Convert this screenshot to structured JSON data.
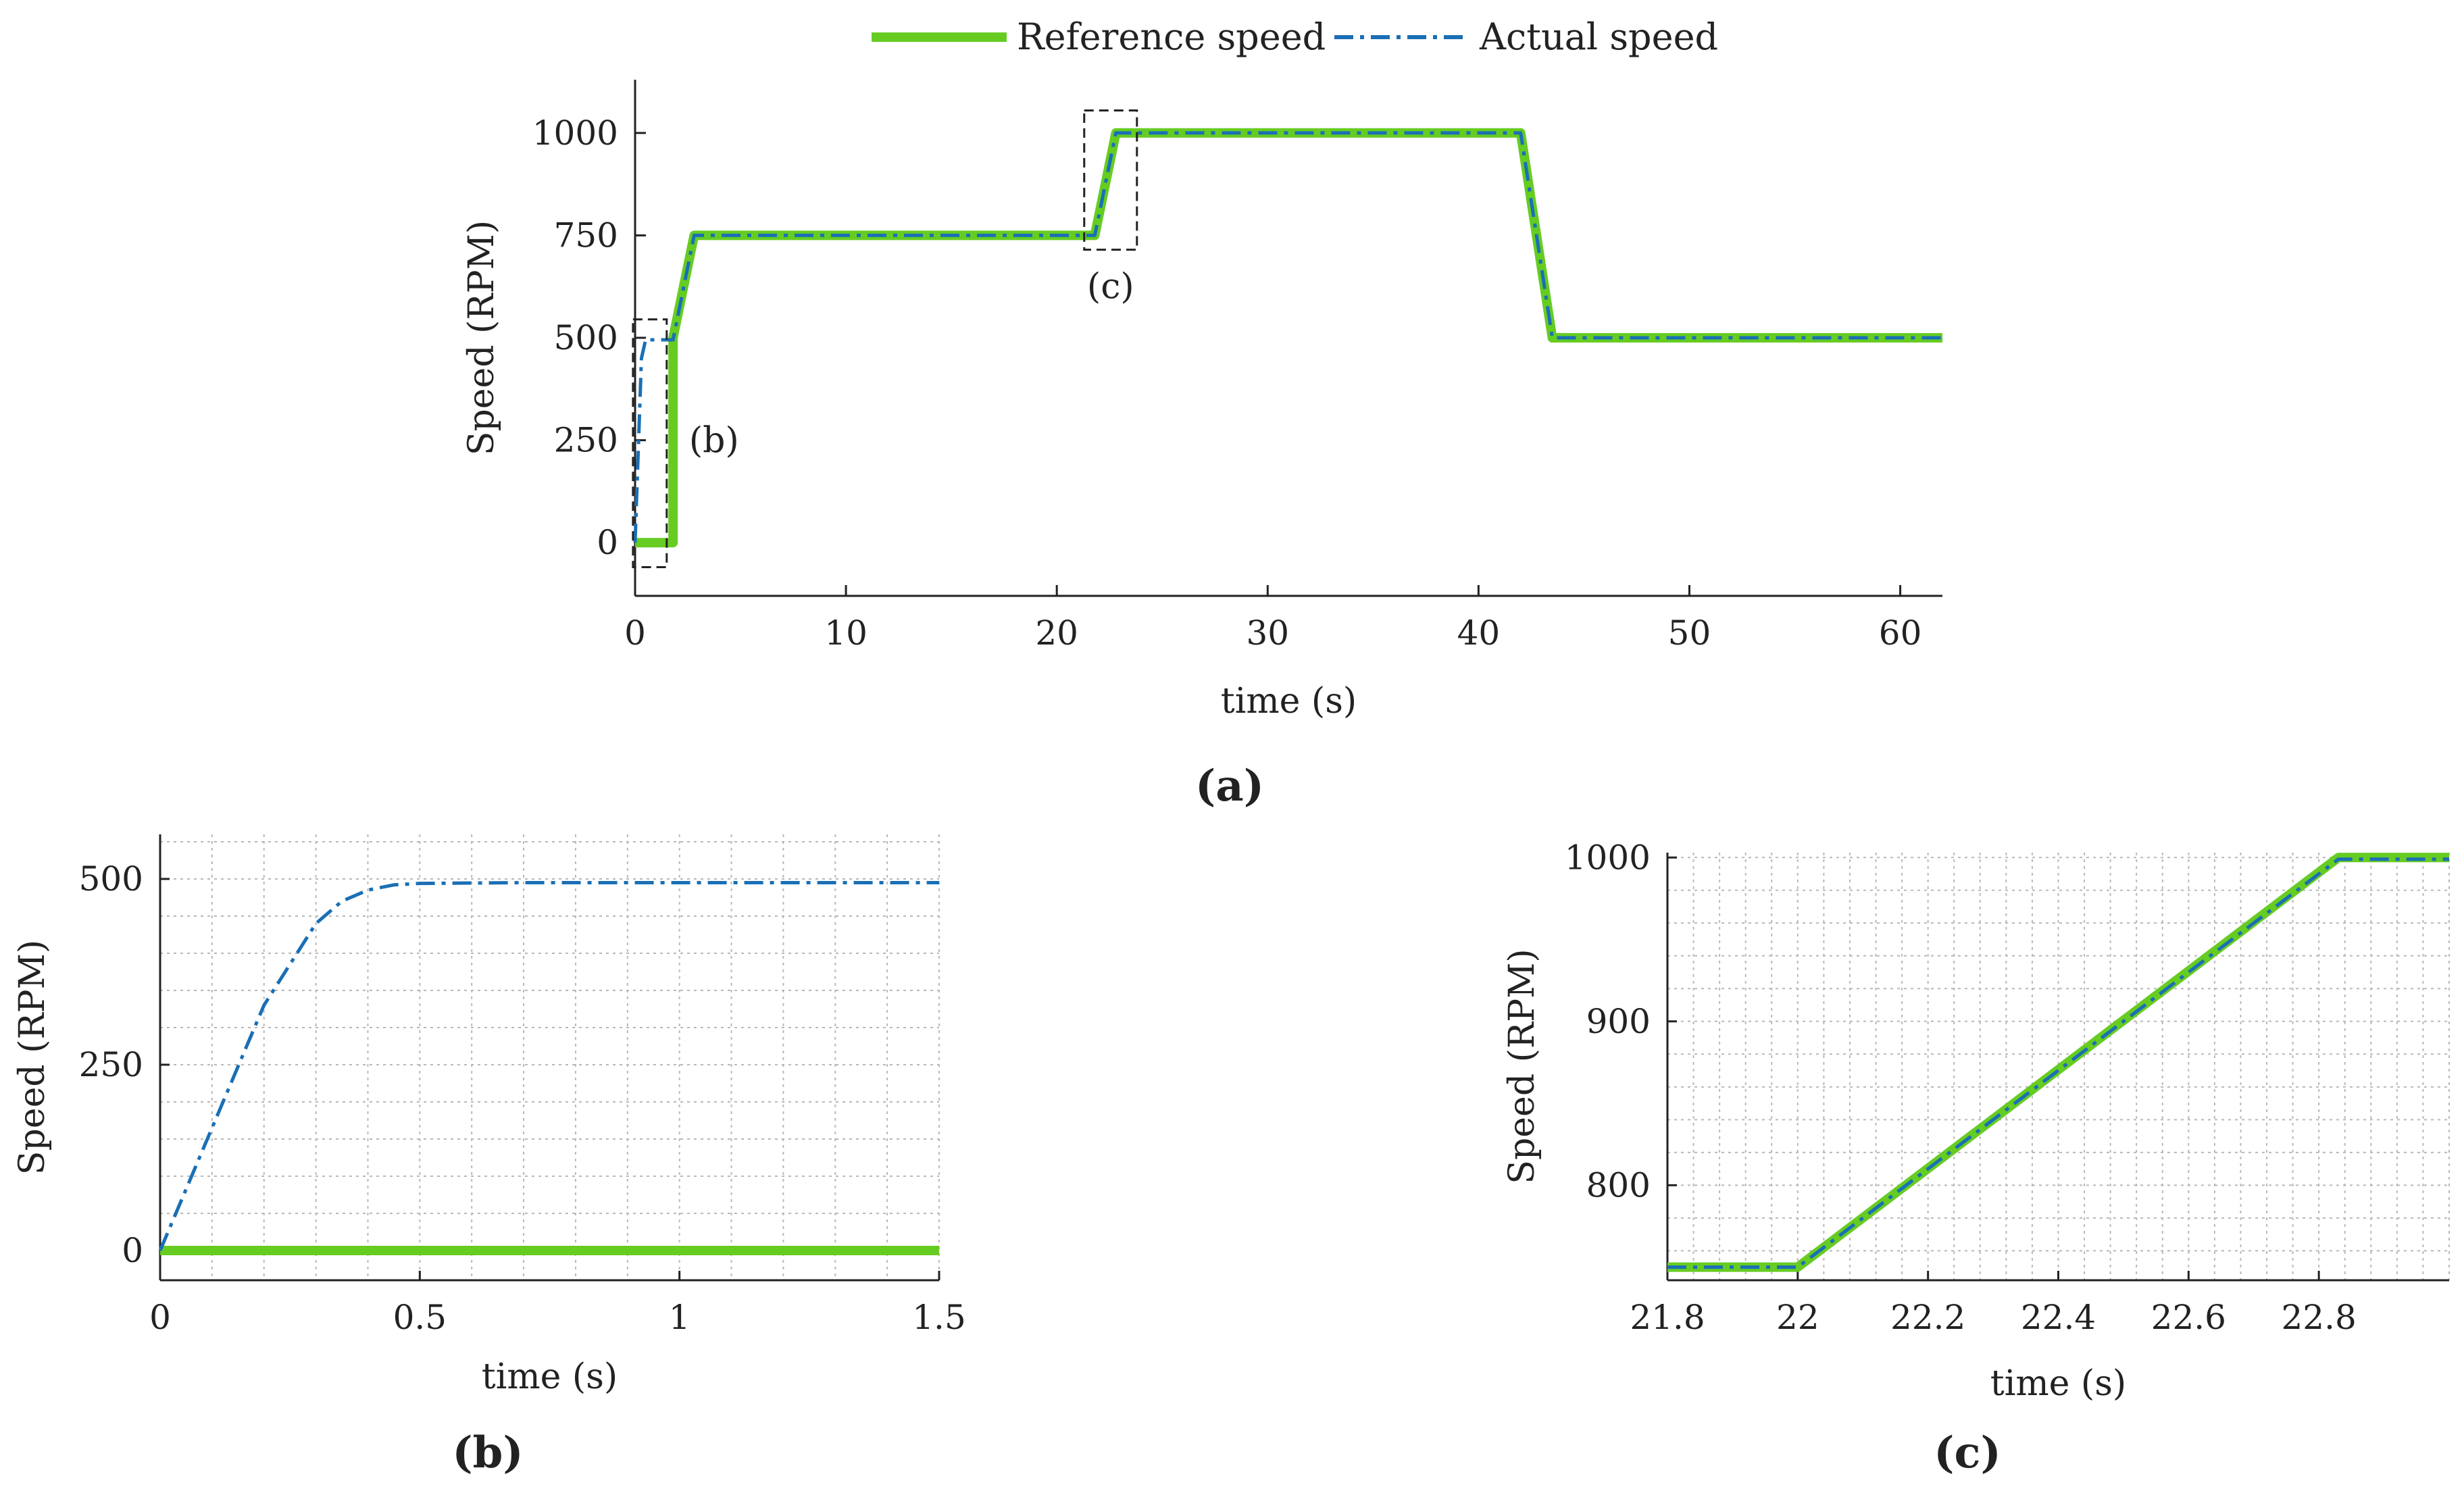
{
  "legend": {
    "reference_label": "Reference speed",
    "actual_label": "Actual speed"
  },
  "colors": {
    "reference": "#66cc22",
    "actual": "#1a6fb5",
    "axis": "#222222",
    "grid": "#b8b8b8",
    "box": "#222222"
  },
  "chart_data": [
    {
      "id": "a",
      "type": "line",
      "caption": "(a)",
      "xlabel": "time (s)",
      "ylabel": "Speed (RPM)",
      "xlim": [
        0,
        62
      ],
      "ylim": [
        -130,
        1130
      ],
      "xticks": [
        0,
        10,
        20,
        30,
        40,
        50,
        60
      ],
      "yticks": [
        0,
        250,
        500,
        750,
        1000
      ],
      "grid": false,
      "legend_position": "top-center",
      "series": [
        {
          "name": "Reference speed",
          "style": "solid",
          "x": [
            0,
            1.8,
            1.8,
            2.8,
            21.8,
            22.8,
            42.0,
            43.5,
            62
          ],
          "y": [
            0,
            0,
            500,
            750,
            750,
            1000,
            1000,
            500,
            500
          ]
        },
        {
          "name": "Actual speed",
          "style": "dashdot",
          "x": [
            0,
            0.3,
            0.5,
            1.8,
            2.8,
            21.8,
            22.8,
            42.0,
            43.5,
            62
          ],
          "y": [
            0,
            450,
            495,
            495,
            750,
            750,
            1000,
            1000,
            500,
            500
          ]
        }
      ],
      "annotations": [
        {
          "label": "(b)",
          "box": {
            "x0": -0.1,
            "x1": 1.5,
            "y0": -60,
            "y1": 545
          }
        },
        {
          "label": "(c)",
          "box": {
            "x0": 21.3,
            "x1": 23.8,
            "y0": 715,
            "y1": 1055
          }
        }
      ]
    },
    {
      "id": "b",
      "type": "line",
      "caption": "(b)",
      "xlabel": "time (s)",
      "ylabel": "Speed (RPM)",
      "xlim": [
        0,
        1.5
      ],
      "ylim": [
        -40,
        560
      ],
      "xticks": [
        0,
        0.5,
        1,
        1.5
      ],
      "xticklabels": [
        "0",
        "0.5",
        "1",
        "1.5"
      ],
      "yticks": [
        0,
        250,
        500
      ],
      "grid": true,
      "series": [
        {
          "name": "Reference speed",
          "style": "solid",
          "x": [
            0,
            1.5
          ],
          "y": [
            0,
            0
          ]
        },
        {
          "name": "Actual speed",
          "style": "dashdot",
          "x": [
            0,
            0.2,
            0.3,
            0.35,
            0.4,
            0.45,
            0.5,
            0.7,
            1.0,
            1.5
          ],
          "y": [
            0,
            330,
            440,
            470,
            485,
            492,
            494,
            495,
            495,
            495
          ]
        }
      ]
    },
    {
      "id": "c",
      "type": "line",
      "caption": "(c)",
      "xlabel": "time (s)",
      "ylabel": "Speed (RPM)",
      "xlim": [
        21.8,
        23.0
      ],
      "ylim": [
        742,
        1003
      ],
      "xticks": [
        21.8,
        22.0,
        22.2,
        22.4,
        22.6,
        22.8
      ],
      "xticklabels": [
        "21.8",
        "22",
        "22.2",
        "22.4",
        "22.6",
        "22.8"
      ],
      "yticks": [
        800,
        900,
        1000
      ],
      "grid": true,
      "series": [
        {
          "name": "Reference speed",
          "style": "solid",
          "x": [
            21.8,
            22.0,
            22.83,
            23.0
          ],
          "y": [
            750,
            750,
            1000,
            1000
          ]
        },
        {
          "name": "Actual speed",
          "style": "dashdot",
          "x": [
            21.8,
            22.0,
            22.83,
            23.0
          ],
          "y": [
            750,
            750,
            999,
            999
          ]
        }
      ]
    }
  ]
}
